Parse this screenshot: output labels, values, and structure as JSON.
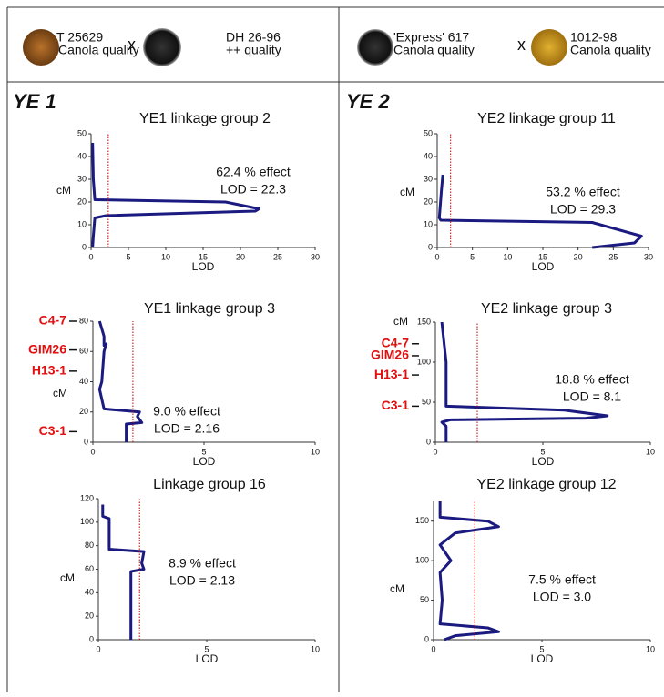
{
  "header": {
    "left": {
      "parent1": [
        "T 25629",
        "Canola quality"
      ],
      "cross": "x",
      "parent2": [
        "DH 26-96",
        "++ quality"
      ]
    },
    "right": {
      "parent1": [
        "'Express' 617",
        "Canola quality"
      ],
      "cross": "x",
      "parent2": [
        "1012-98",
        "Canola quality"
      ]
    },
    "sections": [
      "YE 1",
      "YE 2"
    ]
  },
  "chart_data": [
    {
      "type": "line",
      "title": "YE1 linkage group 2",
      "x_label": "LOD",
      "y_label": "cM",
      "xlim": [
        0,
        30
      ],
      "xticks": [
        0,
        5,
        10,
        15,
        20,
        25,
        30
      ],
      "ylim": [
        0,
        50
      ],
      "yticks": [
        0,
        10,
        20,
        30,
        40,
        50
      ],
      "annotations": [
        "62.4 % effect",
        "LOD = 22.3"
      ],
      "series": [
        {
          "color": "#1a1a80",
          "x": [
            0.2,
            0.3,
            0.5,
            18,
            22.5,
            22,
            2,
            0.5,
            0.3,
            0.2
          ],
          "values": [
            46,
            30,
            21,
            20,
            17,
            16,
            14,
            13,
            5,
            0
          ]
        },
        {
          "color": "#cc0000",
          "style": "dotted",
          "x": [
            2.3,
            2.3
          ],
          "values": [
            0,
            50
          ]
        }
      ]
    },
    {
      "type": "line",
      "title": "YE1 linkage group 3",
      "x_label": "LOD",
      "y_label": "cM",
      "xlim": [
        0,
        10
      ],
      "xticks": [
        0,
        5,
        10
      ],
      "ylim": [
        0,
        80
      ],
      "yticks": [
        0,
        20,
        40,
        60,
        80
      ],
      "annotations": [
        "9.0 % effect",
        "LOD = 2.16"
      ],
      "markers": [
        {
          "label": "C4-7",
          "value": 80
        },
        {
          "label": "GIM26",
          "value": 61
        },
        {
          "label": "H13-1",
          "value": 47
        },
        {
          "label": "C3-1",
          "value": 7
        }
      ],
      "series": [
        {
          "color": "#1a1a80",
          "x": [
            0.3,
            0.5,
            0.5,
            0.6,
            0.5,
            0.4,
            0.3,
            0.5,
            2.1,
            2,
            2.2,
            1.5,
            1.5
          ],
          "values": [
            80,
            70,
            64,
            65,
            60,
            40,
            35,
            22,
            20,
            17,
            13,
            12,
            0
          ]
        },
        {
          "color": "#cc0000",
          "style": "dotted",
          "x": [
            1.8,
            1.8
          ],
          "values": [
            0,
            80
          ]
        }
      ]
    },
    {
      "type": "line",
      "title": "Linkage group 16",
      "x_label": "LOD",
      "y_label": "cM",
      "xlim": [
        0,
        10
      ],
      "xticks": [
        0,
        5,
        10
      ],
      "ylim": [
        0,
        120
      ],
      "yticks": [
        0,
        20,
        40,
        60,
        80,
        100,
        120
      ],
      "annotations": [
        "8.9 % effect",
        "LOD = 2.13"
      ],
      "series": [
        {
          "color": "#1a1a80",
          "x": [
            0.2,
            0.2,
            0.5,
            0.5,
            2.1,
            2,
            2.1,
            1.5,
            1.5
          ],
          "values": [
            115,
            105,
            103,
            77,
            75,
            65,
            60,
            58,
            0
          ]
        },
        {
          "color": "#cc0000",
          "style": "dotted",
          "x": [
            1.9,
            1.9
          ],
          "values": [
            0,
            120
          ]
        }
      ]
    },
    {
      "type": "line",
      "title": "YE2 linkage group 11",
      "x_label": "LOD",
      "y_label": "cM",
      "xlim": [
        0,
        30
      ],
      "xticks": [
        0,
        5,
        10,
        15,
        20,
        25,
        30
      ],
      "ylim": [
        0,
        50
      ],
      "yticks": [
        0,
        10,
        20,
        30,
        40,
        50
      ],
      "annotations": [
        "53.2 % effect",
        "LOD = 29.3"
      ],
      "series": [
        {
          "color": "#1a1a80",
          "x": [
            0.8,
            0.6,
            0.3,
            0.5,
            22,
            29,
            28,
            22
          ],
          "values": [
            32,
            25,
            13,
            12,
            11,
            5,
            2,
            0
          ]
        },
        {
          "color": "#cc0000",
          "style": "dotted",
          "x": [
            1.9,
            1.9
          ],
          "values": [
            0,
            50
          ]
        }
      ]
    },
    {
      "type": "line",
      "title": "YE2 linkage group 3",
      "x_label": "LOD",
      "y_label": "cM",
      "xlim": [
        0,
        10
      ],
      "xticks": [
        0,
        5,
        10
      ],
      "ylim": [
        0,
        150
      ],
      "yticks": [
        0,
        50,
        100,
        150
      ],
      "annotations": [
        "18.8 % effect",
        "LOD = 8.1"
      ],
      "markers": [
        {
          "label": "C4-7",
          "value": 123
        },
        {
          "label": "GIM26",
          "value": 108
        },
        {
          "label": "H13-1",
          "value": 84
        },
        {
          "label": "C3-1",
          "value": 45
        }
      ],
      "series": [
        {
          "color": "#1a1a80",
          "x": [
            0.3,
            0.5,
            0.5,
            0.5,
            6,
            8,
            7,
            0.7,
            0.3,
            0.5,
            0.5
          ],
          "values": [
            150,
            100,
            55,
            45,
            40,
            33,
            30,
            28,
            25,
            20,
            0
          ]
        },
        {
          "color": "#cc0000",
          "style": "dotted",
          "x": [
            1.95,
            1.95
          ],
          "values": [
            0,
            150
          ]
        }
      ]
    },
    {
      "type": "line",
      "title": "YE2 linkage group 12",
      "x_label": "LOD",
      "y_label": "cM",
      "xlim": [
        0,
        10
      ],
      "xticks": [
        0,
        5,
        10
      ],
      "ylim": [
        0,
        175
      ],
      "yticks": [
        0,
        50,
        100,
        150
      ],
      "annotations": [
        "7.5 % effect",
        "LOD = 3.0"
      ],
      "series": [
        {
          "color": "#1a1a80",
          "x": [
            0.3,
            0.3,
            2.5,
            3,
            1,
            0.3,
            0.8,
            0.3,
            0.4,
            0.3,
            2.5,
            3,
            1,
            0.5
          ],
          "values": [
            175,
            155,
            150,
            143,
            135,
            120,
            100,
            85,
            50,
            20,
            15,
            10,
            5,
            0
          ]
        },
        {
          "color": "#cc0000",
          "style": "dotted",
          "x": [
            1.9,
            1.9
          ],
          "values": [
            0,
            175
          ]
        }
      ]
    }
  ]
}
